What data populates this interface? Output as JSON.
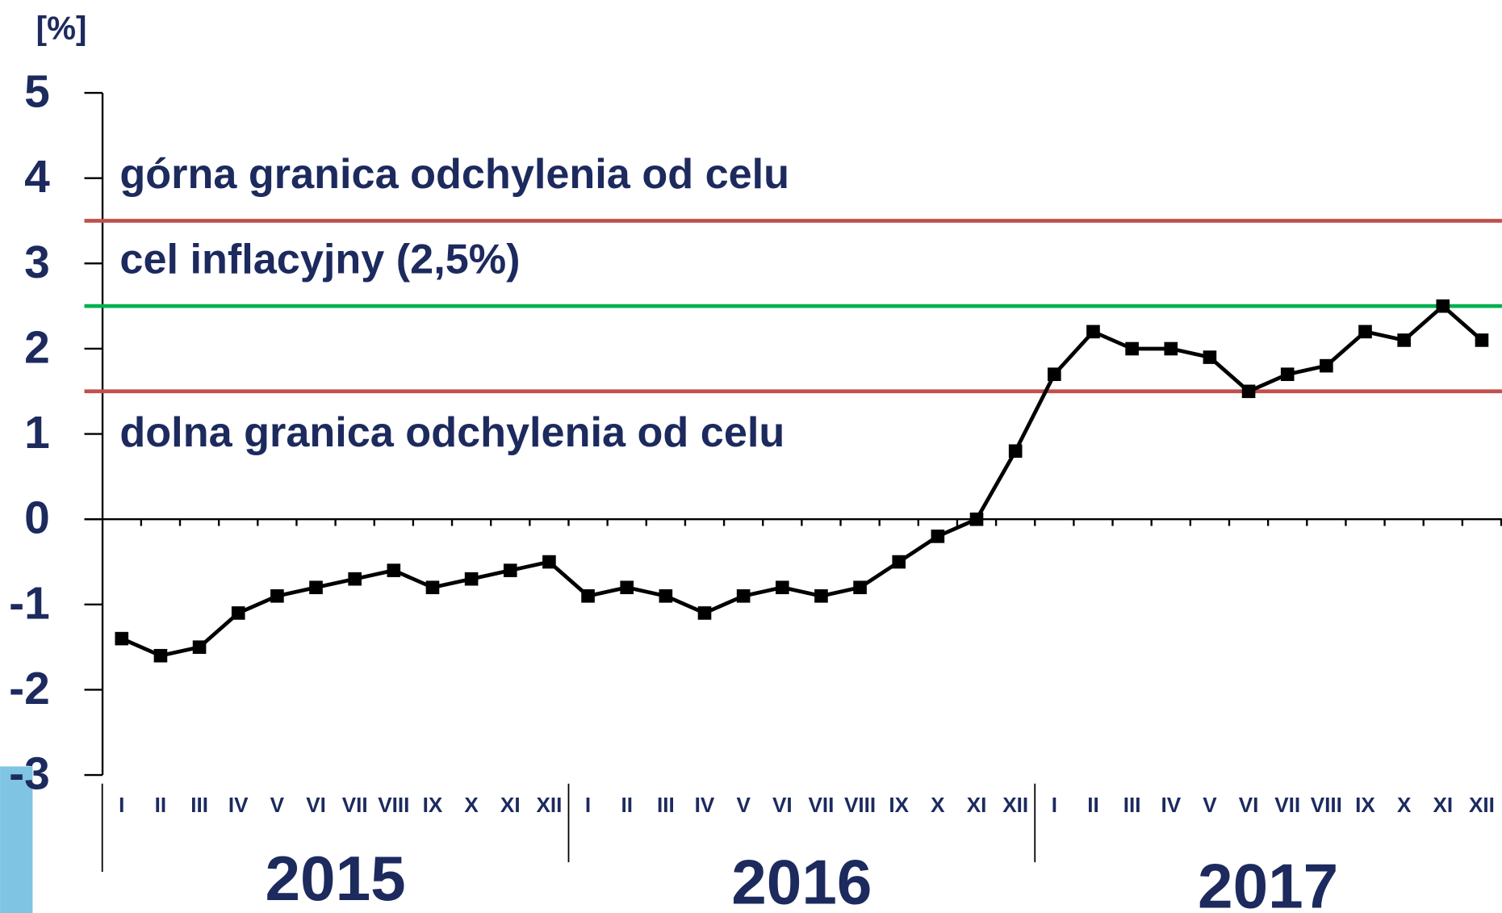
{
  "chart_data": {
    "type": "line",
    "y_label": "[%]",
    "categories": [
      "I",
      "II",
      "III",
      "IV",
      "V",
      "VI",
      "VII",
      "VIII",
      "IX",
      "X",
      "XI",
      "XII",
      "I",
      "II",
      "III",
      "IV",
      "V",
      "VI",
      "VII",
      "VIII",
      "IX",
      "X",
      "XI",
      "XII",
      "I",
      "II",
      "III",
      "IV",
      "V",
      "VI",
      "VII",
      "VIII",
      "IX",
      "X",
      "XI",
      "XII"
    ],
    "years": [
      "2015",
      "2016",
      "2017"
    ],
    "series": [
      {
        "color": "#000000",
        "values": [
          -1.4,
          -1.6,
          -1.5,
          -1.1,
          -0.9,
          -0.8,
          -0.7,
          -0.6,
          -0.8,
          -0.7,
          -0.6,
          -0.5,
          -0.9,
          -0.8,
          -0.9,
          -1.1,
          -0.9,
          -0.8,
          -0.9,
          -0.8,
          -0.5,
          -0.2,
          0,
          0.8,
          1.7,
          2.2,
          2.0,
          2.0,
          1.9,
          1.5,
          1.7,
          1.8,
          2.2,
          2.1,
          2.5,
          2.1
        ]
      }
    ],
    "reference_lines": [
      {
        "value": 3.5,
        "color": "#c0504d",
        "label": "górna granica odchylenia od celu"
      },
      {
        "value": 2.5,
        "color": "#00b050",
        "label": "cel inflacyjny (2,5%)"
      },
      {
        "value": 1.5,
        "color": "#c0504d",
        "label": "dolna granica odchylenia od celu"
      }
    ],
    "ylim": [
      -3,
      5
    ],
    "yticks": [
      -3,
      -2,
      -1,
      0,
      1,
      2,
      3,
      4,
      5
    ],
    "grid": false
  }
}
